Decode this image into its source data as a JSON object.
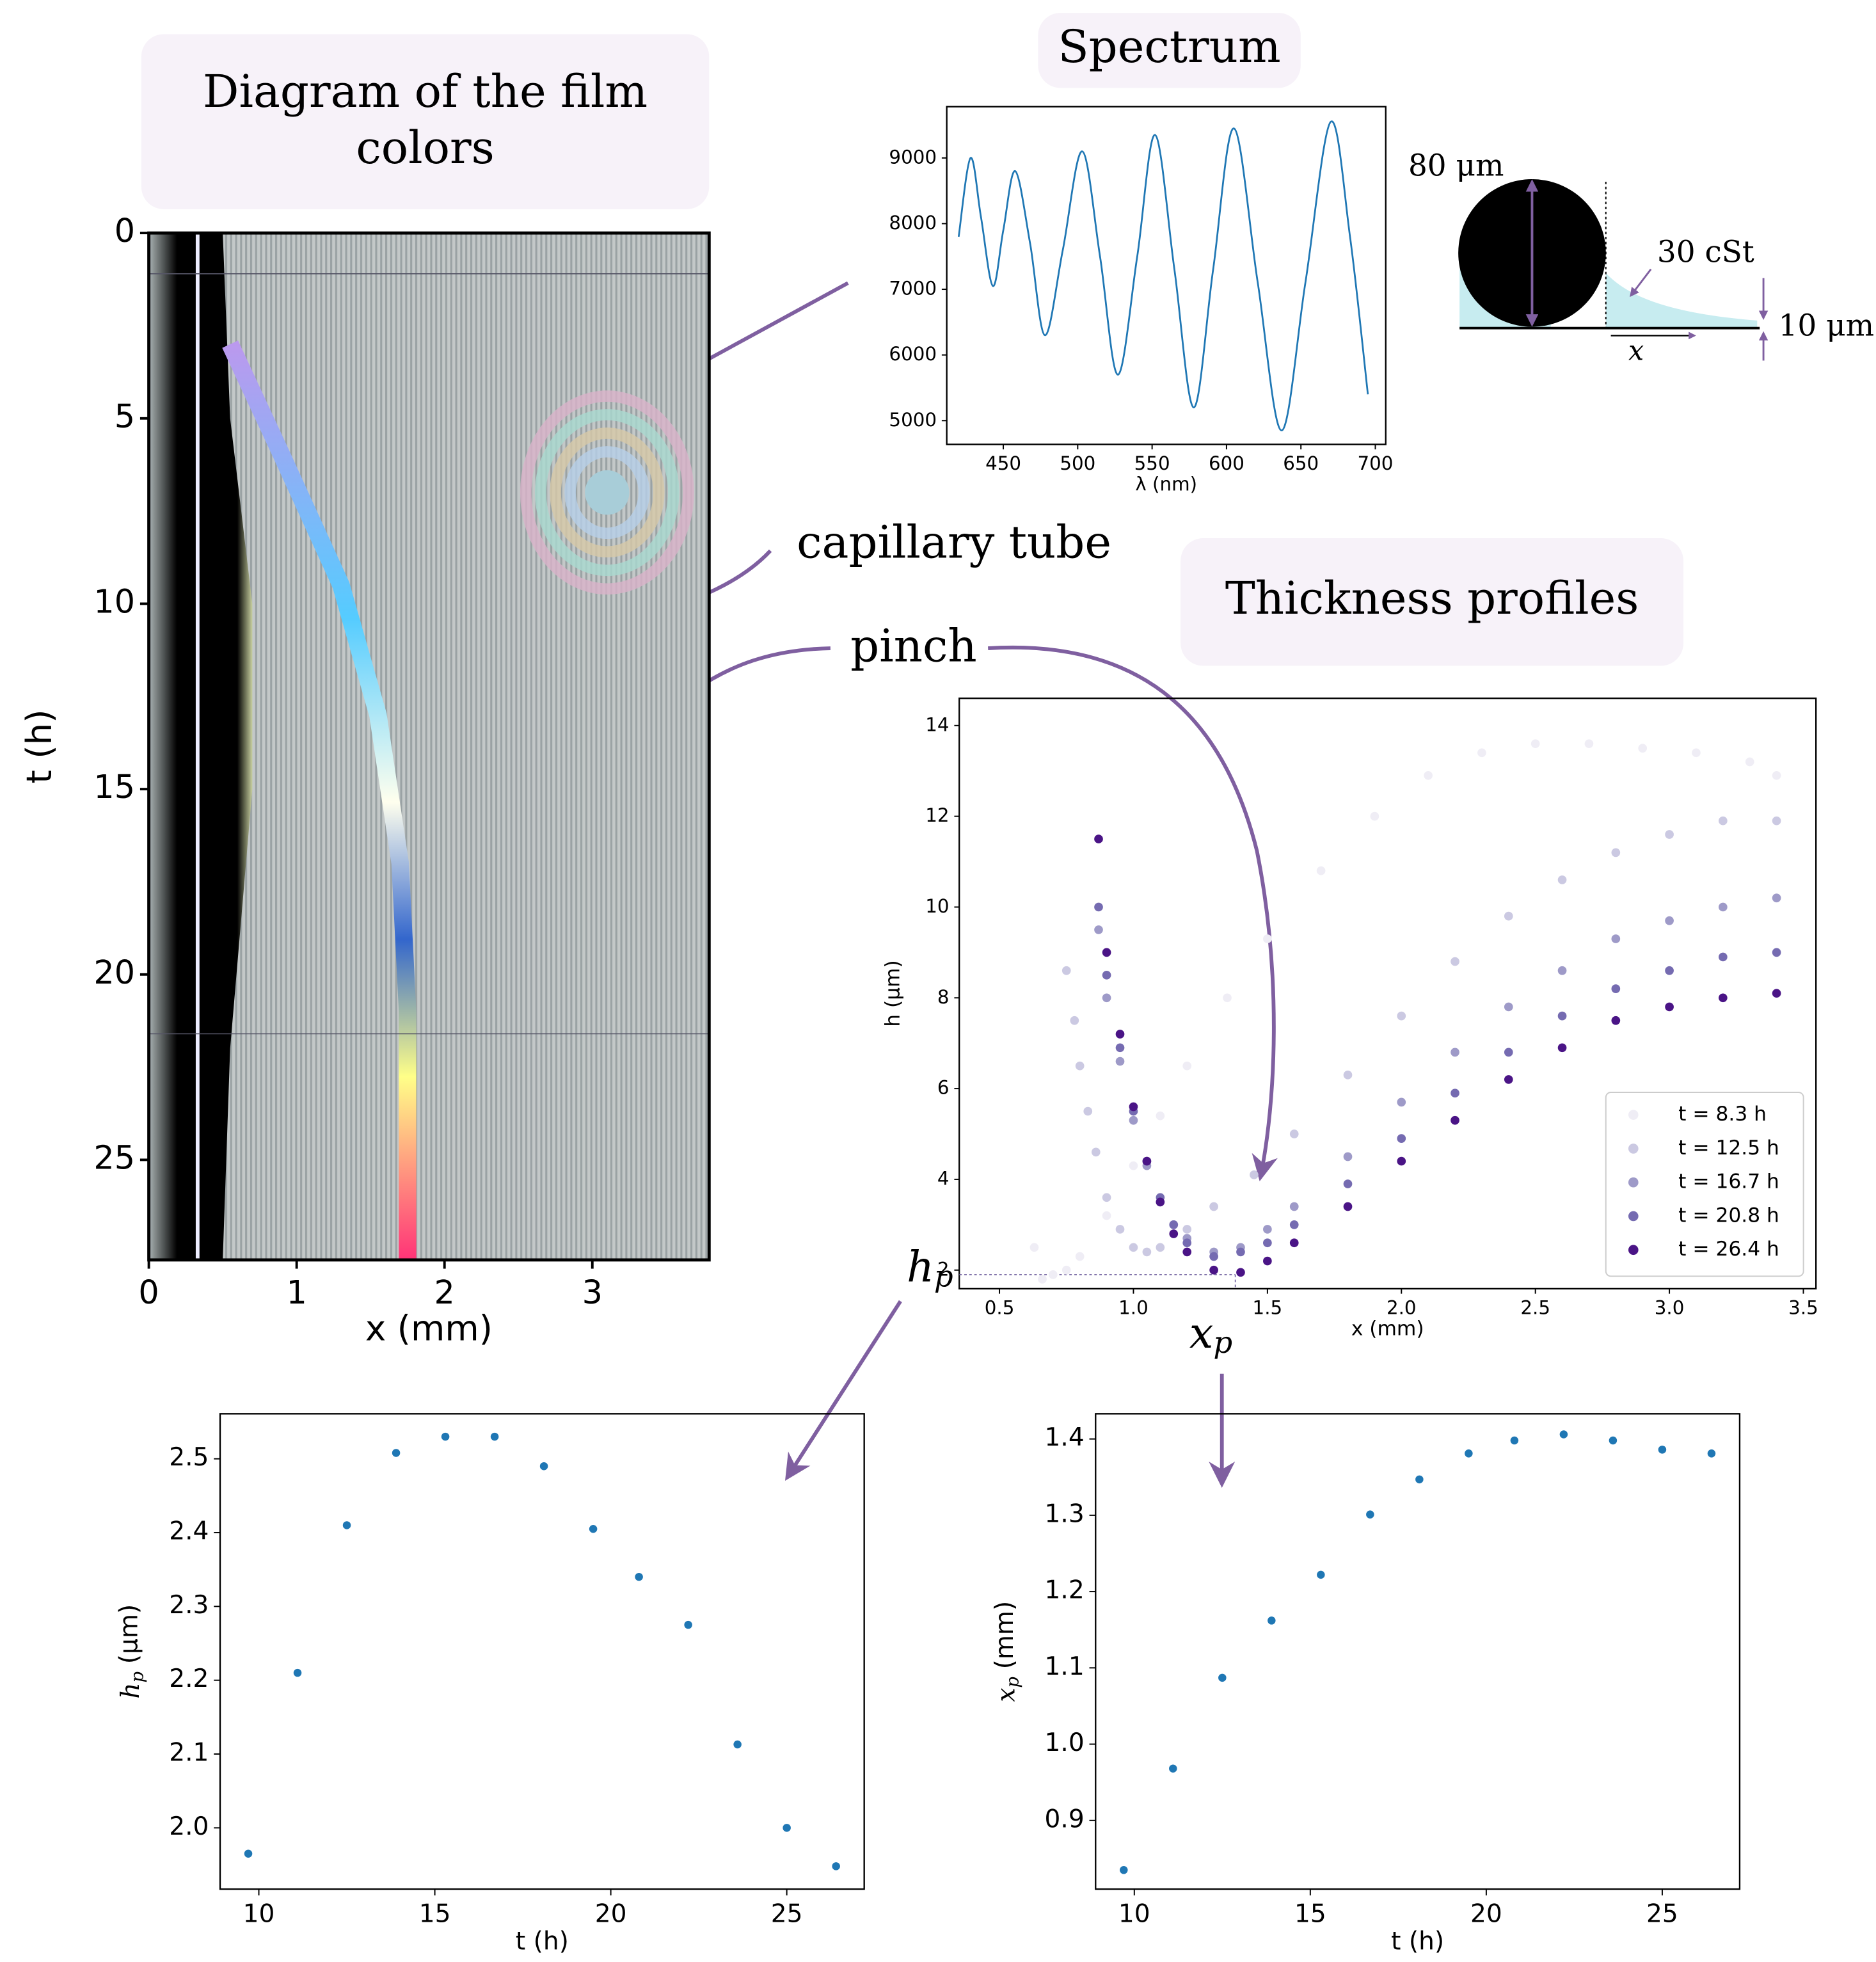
{
  "chart_data": [
    {
      "type": "image",
      "title": "Diagram of the film colors",
      "xlabel": "x (mm)",
      "ylabel": "t (h)",
      "xlim": [
        0,
        3.79
      ],
      "ylim": [
        0,
        27.7
      ],
      "y_inverted": true,
      "xticks": [
        0,
        1,
        2,
        3
      ],
      "yticks": [
        0,
        5,
        10,
        15,
        20,
        25
      ]
    },
    {
      "type": "line",
      "title": "Spectrum",
      "xlabel": "λ (nm)",
      "color": "#1f77b4",
      "x": [
        420,
        428,
        435,
        443,
        450,
        458,
        468,
        478,
        490,
        503,
        515,
        527,
        540,
        552,
        565,
        578,
        591,
        605,
        621,
        637,
        653,
        670,
        683,
        695
      ],
      "values": [
        7800,
        9000,
        8100,
        7050,
        7900,
        8800,
        7700,
        6300,
        7600,
        9100,
        7500,
        5700,
        7500,
        9350,
        7300,
        5200,
        7300,
        9450,
        7100,
        4850,
        7100,
        9550,
        7800,
        5400
      ],
      "xlim": [
        412,
        707
      ],
      "ylim": [
        4638,
        9781
      ],
      "xticks": [
        450,
        500,
        550,
        600,
        650,
        700
      ],
      "yticks": [
        5000,
        6000,
        7000,
        8000,
        9000
      ]
    },
    {
      "type": "scatter",
      "title": "Thickness profiles",
      "xlabel": "x (mm)",
      "ylabel": "h (μm)",
      "xlim": [
        0.35,
        3.547
      ],
      "ylim": [
        1.59,
        14.6
      ],
      "xticks": [
        0.5,
        {
          "value": 1,
          "label": "1.0"
        },
        1.5,
        {
          "value": 2,
          "label": "2.0"
        },
        2.5,
        {
          "value": 3,
          "label": "3.0"
        },
        3.5
      ],
      "yticks": [
        2,
        4,
        6,
        8,
        10,
        12,
        14
      ],
      "legend": "lower right",
      "guide": {
        "x": 1.38,
        "y": 1.9
      },
      "series": [
        {
          "name": "t = 8.3 h",
          "color": "#efedf5",
          "x": [
            0.63,
            0.66,
            0.7,
            0.75,
            0.8,
            0.9,
            1.0,
            1.1,
            1.2,
            1.35,
            1.5,
            1.7,
            1.9,
            2.1,
            2.3,
            2.5,
            2.7,
            2.9,
            3.1,
            3.3,
            3.4
          ],
          "values": [
            2.5,
            1.8,
            1.9,
            2.0,
            2.3,
            3.2,
            4.3,
            5.4,
            6.5,
            8.0,
            9.3,
            10.8,
            12.0,
            12.9,
            13.4,
            13.6,
            13.6,
            13.5,
            13.4,
            13.2,
            12.9
          ]
        },
        {
          "name": "t = 12.5 h",
          "color": "#cbc9e2",
          "x": [
            0.75,
            0.78,
            0.8,
            0.83,
            0.86,
            0.9,
            0.95,
            1.0,
            1.05,
            1.1,
            1.2,
            1.3,
            1.45,
            1.6,
            1.8,
            2.0,
            2.2,
            2.4,
            2.6,
            2.8,
            3.0,
            3.2,
            3.4
          ],
          "values": [
            8.6,
            7.5,
            6.5,
            5.5,
            4.6,
            3.6,
            2.9,
            2.5,
            2.4,
            2.5,
            2.9,
            3.4,
            4.1,
            5.0,
            6.3,
            7.6,
            8.8,
            9.8,
            10.6,
            11.2,
            11.6,
            11.9,
            11.9
          ]
        },
        {
          "name": "t = 16.7 h",
          "color": "#9e9ac8",
          "x": [
            0.87,
            0.9,
            0.95,
            1.0,
            1.05,
            1.1,
            1.15,
            1.2,
            1.3,
            1.4,
            1.5,
            1.6,
            1.8,
            2.0,
            2.2,
            2.4,
            2.6,
            2.8,
            3.0,
            3.2,
            3.4
          ],
          "values": [
            9.5,
            8.0,
            6.6,
            5.3,
            4.3,
            3.5,
            3.0,
            2.7,
            2.4,
            2.5,
            2.9,
            3.4,
            4.5,
            5.7,
            6.8,
            7.8,
            8.6,
            9.3,
            9.7,
            10.0,
            10.2
          ]
        },
        {
          "name": "t = 20.8 h",
          "color": "#756bb1",
          "x": [
            0.87,
            0.9,
            0.95,
            1.0,
            1.05,
            1.1,
            1.15,
            1.2,
            1.3,
            1.4,
            1.5,
            1.6,
            1.8,
            2.0,
            2.2,
            2.4,
            2.6,
            2.8,
            3.0,
            3.2,
            3.4
          ],
          "values": [
            10.0,
            8.5,
            6.9,
            5.5,
            4.4,
            3.6,
            3.0,
            2.6,
            2.3,
            2.4,
            2.6,
            3.0,
            3.9,
            4.9,
            5.9,
            6.8,
            7.6,
            8.2,
            8.6,
            8.9,
            9.0
          ]
        },
        {
          "name": "t = 26.4 h",
          "color": "#4a1486",
          "x": [
            0.87,
            0.9,
            0.95,
            1.0,
            1.05,
            1.1,
            1.15,
            1.2,
            1.3,
            1.4,
            1.5,
            1.6,
            1.8,
            2.0,
            2.2,
            2.4,
            2.6,
            2.8,
            3.0,
            3.2,
            3.4
          ],
          "values": [
            11.5,
            9.0,
            7.2,
            5.6,
            4.4,
            3.5,
            2.8,
            2.4,
            2.0,
            1.95,
            2.2,
            2.6,
            3.4,
            4.4,
            5.3,
            6.2,
            6.9,
            7.5,
            7.8,
            8.0,
            8.1
          ]
        }
      ]
    },
    {
      "type": "scatter",
      "xlabel": "t (h)",
      "ylabel": {
        "symbol": "h",
        "subscript": "p",
        "unit": "(μm)"
      },
      "color": "#1f77b4",
      "x": [
        9.7,
        11.1,
        12.5,
        13.9,
        15.3,
        16.7,
        18.1,
        19.5,
        20.8,
        22.2,
        23.6,
        25.0,
        26.4
      ],
      "values": [
        1.965,
        2.21,
        2.41,
        2.508,
        2.53,
        2.53,
        2.49,
        2.405,
        2.34,
        2.275,
        2.113,
        2.0,
        1.948
      ],
      "xlim": [
        8.9,
        27.2
      ],
      "ylim": [
        1.917,
        2.561
      ],
      "xticks": [
        10,
        15,
        20,
        25
      ],
      "yticks": [
        {
          "value": 2,
          "label": "2.0"
        },
        2.1,
        2.2,
        2.3,
        2.4,
        2.5
      ]
    },
    {
      "type": "scatter",
      "xlabel": "t (h)",
      "ylabel": {
        "symbol": "x",
        "subscript": "p",
        "unit": "(mm)"
      },
      "color": "#1f77b4",
      "x": [
        9.7,
        11.1,
        12.5,
        13.9,
        15.3,
        16.7,
        18.1,
        19.5,
        20.8,
        22.2,
        23.6,
        25.0,
        26.4
      ],
      "values": [
        0.835,
        0.968,
        1.087,
        1.162,
        1.222,
        1.301,
        1.347,
        1.381,
        1.398,
        1.406,
        1.398,
        1.386,
        1.381
      ],
      "xlim": [
        8.9,
        27.2
      ],
      "ylim": [
        0.81,
        1.433
      ],
      "xticks": [
        10,
        15,
        20,
        25
      ],
      "yticks": [
        0.9,
        {
          "value": 1,
          "label": "1.0"
        },
        1.1,
        1.2,
        1.3,
        1.4
      ]
    }
  ],
  "annotations": {
    "capillary": "capillary tube",
    "pinch": "pinch",
    "hp": {
      "symbol": "h",
      "subscript": "p"
    },
    "xp": {
      "symbol": "x",
      "subscript": "p"
    }
  },
  "schematic": {
    "diameter": "80 μm",
    "viscosity": "30 cSt",
    "thickness": "10 μm",
    "axis": "x"
  }
}
